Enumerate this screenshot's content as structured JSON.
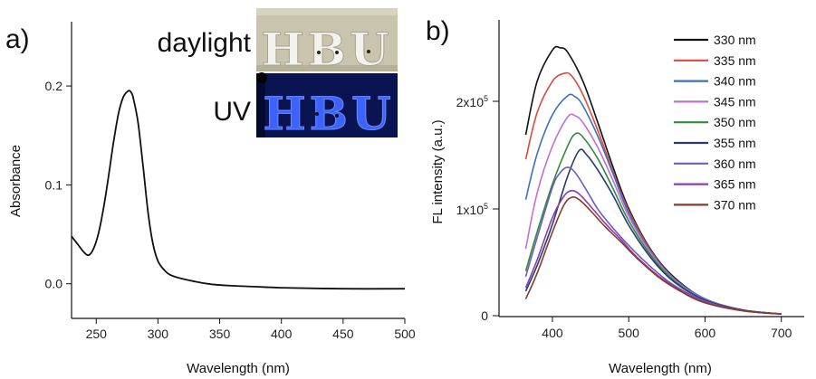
{
  "panels": {
    "a": {
      "label": "a)",
      "photo": {
        "top_label": "daylight",
        "bottom_label": "UV",
        "sign_text": "HBU"
      },
      "chart_data": {
        "type": "line",
        "xlabel": "Wavelength (nm)",
        "ylabel": "Absorbance",
        "xlim": [
          230,
          500
        ],
        "ylim": [
          -0.035,
          0.265
        ],
        "xticks": [
          250,
          300,
          350,
          400,
          450,
          500
        ],
        "yticks": [
          0.0,
          0.1,
          0.2
        ],
        "ytick_labels": [
          "0.0",
          "0.1",
          "0.2"
        ],
        "grid": false,
        "series": [
          {
            "color": "#111111",
            "x": [
              230,
              235,
              240,
              244,
              248,
              252,
              256,
              260,
              264,
              268,
              272,
              276,
              278,
              280,
              284,
              288,
              292,
              296,
              300,
              305,
              310,
              320,
              340,
              360,
              380,
              400,
              450,
              500
            ],
            "y": [
              0.048,
              0.04,
              0.032,
              0.029,
              0.036,
              0.052,
              0.077,
              0.109,
              0.143,
              0.172,
              0.189,
              0.195,
              0.194,
              0.188,
              0.162,
              0.118,
              0.072,
              0.04,
              0.023,
              0.014,
              0.009,
              0.005,
              0.0,
              -0.002,
              -0.003,
              -0.004,
              -0.005,
              -0.005
            ]
          }
        ]
      }
    },
    "b": {
      "label": "b)",
      "chart_data": {
        "type": "line",
        "xlabel": "Wavelength (nm)",
        "ylabel": "FL intensity (a.u.)",
        "xlim": [
          330,
          730
        ],
        "ylim": [
          0,
          265000
        ],
        "xticks": [
          400,
          500,
          600,
          700
        ],
        "yticks": [
          0,
          100000,
          200000
        ],
        "ytick_labels": [
          "0",
          "1x10^5",
          "2x10^5"
        ],
        "legend_position": "top-right",
        "grid": false,
        "series": [
          {
            "name": "330 nm",
            "color": "#111111",
            "x": [
              365,
              380,
              400,
              410,
              420,
              440,
              460,
              480,
              500,
              530,
              560,
              600,
              650,
              700
            ],
            "y": [
              162000,
              210000,
              238000,
              240000,
              236000,
              210000,
              172000,
              132000,
              96000,
              58000,
              34000,
              15000,
              5000,
              1500
            ]
          },
          {
            "name": "335 nm",
            "color": "#e0483a",
            "x": [
              365,
              380,
              400,
              415,
              425,
              440,
              460,
              480,
              500,
              530,
              560,
              600,
              650,
              700
            ],
            "y": [
              140000,
              182000,
              210000,
              217000,
              215000,
              198000,
              165000,
              128000,
              94000,
              57000,
              33000,
              15000,
              5000,
              1500
            ]
          },
          {
            "name": "340 nm",
            "color": "#3a6fc4",
            "x": [
              365,
              380,
              400,
              420,
              430,
              440,
              460,
              480,
              500,
              530,
              560,
              600,
              650,
              700
            ],
            "y": [
              104000,
              145000,
              180000,
              197000,
              196000,
              188000,
              160000,
              126000,
              92000,
              56000,
              33000,
              15000,
              5000,
              1500
            ]
          },
          {
            "name": "345 nm",
            "color": "#c070d0",
            "x": [
              365,
              380,
              400,
              420,
              430,
              440,
              460,
              480,
              500,
              530,
              560,
              600,
              650,
              700
            ],
            "y": [
              60000,
              110000,
              152000,
              178000,
              179000,
              173000,
              150000,
              120000,
              89000,
              55000,
              32000,
              14500,
              5000,
              1500
            ]
          },
          {
            "name": "350 nm",
            "color": "#2e8c3a",
            "x": [
              365,
              380,
              400,
              420,
              430,
              440,
              460,
              480,
              500,
              530,
              560,
              600,
              650,
              700
            ],
            "y": [
              40000,
              75000,
              118000,
              152000,
              163000,
              160000,
              140000,
              113000,
              85000,
              53000,
              31000,
              14000,
              5000,
              1500
            ]
          },
          {
            "name": "355 nm",
            "color": "#2a3a6e",
            "x": [
              365,
              380,
              400,
              420,
              435,
              445,
              460,
              480,
              500,
              530,
              560,
              600,
              650,
              700
            ],
            "y": [
              22000,
              45000,
              82000,
              125000,
              148000,
              144000,
              130000,
              107000,
              81000,
              51000,
              30000,
              14000,
              5000,
              1500
            ]
          },
          {
            "name": "360 nm",
            "color": "#6f5bc4",
            "x": [
              365,
              380,
              400,
              410,
              420,
              430,
              445,
              460,
              480,
              500,
              530,
              560,
              600,
              650,
              700
            ],
            "y": [
              35000,
              70000,
              115000,
              128000,
              133000,
              128000,
              112000,
              95000,
              78000,
              63000,
              43000,
              27000,
              13000,
              4500,
              1500
            ]
          },
          {
            "name": "365 nm",
            "color": "#8a40a8",
            "x": [
              365,
              380,
              400,
              415,
              425,
              435,
              450,
              470,
              490,
              510,
              540,
              570,
              600,
              650,
              700
            ],
            "y": [
              25000,
              50000,
              88000,
              107000,
              112000,
              109000,
              98000,
              82000,
              68000,
              53000,
              35000,
              22000,
              12000,
              4500,
              1500
            ]
          },
          {
            "name": "370 nm",
            "color": "#8a3a2a",
            "x": [
              365,
              380,
              400,
              415,
              425,
              435,
              450,
              470,
              490,
              510,
              540,
              570,
              600,
              650,
              700
            ],
            "y": [
              15000,
              38000,
              75000,
              99000,
              106000,
              104000,
              94000,
              79000,
              66000,
              52000,
              34000,
              21000,
              11500,
              4300,
              1400
            ]
          }
        ]
      }
    }
  }
}
